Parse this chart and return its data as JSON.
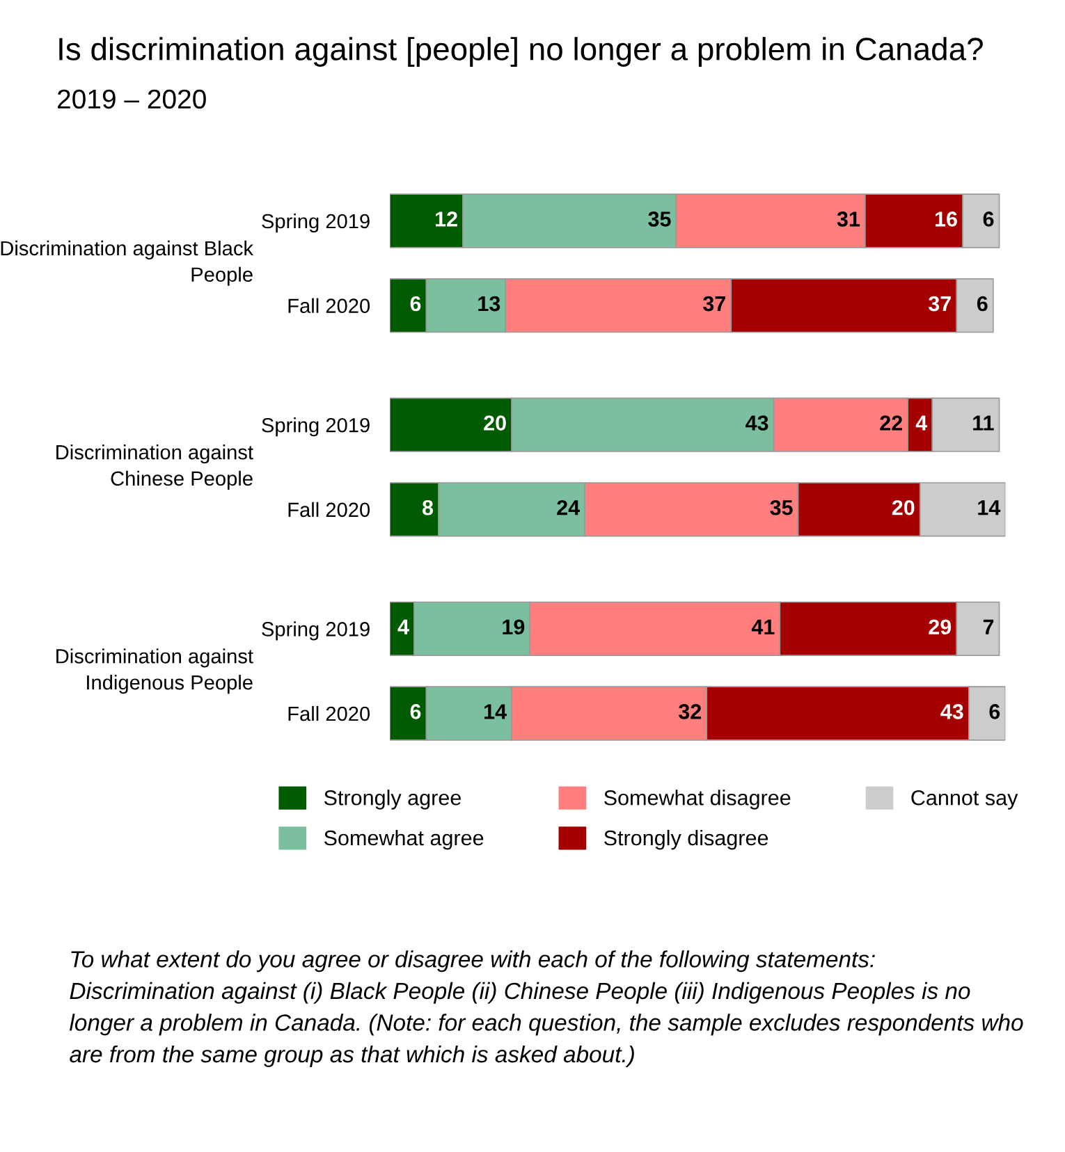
{
  "chart_data": {
    "type": "bar",
    "orientation": "horizontal",
    "stacked": true,
    "data_labels": true,
    "legend": "bottom",
    "title": "Is discrimination against [people] no longer a problem in Canada?",
    "subtitle": "2019 – 2020",
    "categories": [
      "Spring 2019",
      "Fall 2020",
      "Spring 2019",
      "Fall 2020",
      "Spring 2019",
      "Fall 2020"
    ],
    "series": [
      {
        "name": "Strongly agree",
        "color": "#005a00",
        "values": [
          12,
          6,
          20,
          8,
          4,
          6
        ]
      },
      {
        "name": "Somewhat agree",
        "color": "#7bbf9e",
        "values": [
          35,
          13,
          43,
          24,
          19,
          14
        ]
      },
      {
        "name": "Somewhat disagree",
        "color": "#ff7f7f",
        "values": [
          31,
          37,
          22,
          35,
          41,
          32
        ]
      },
      {
        "name": "Strongly disagree",
        "color": "#a50000",
        "values": [
          16,
          37,
          4,
          20,
          29,
          43
        ]
      },
      {
        "name": "Cannot say",
        "color": "#cccccc",
        "values": [
          6,
          6,
          11,
          14,
          7,
          6
        ]
      }
    ],
    "annotations": [
      "Discrimination against Black People",
      "Discrimination against Chinese People",
      "Discrimination against Indigenous People",
      "To what extent do you agree or disagree with each of the following statements: Discrimination against (i) Black People (ii) Chinese People (iii) Indigenous Peoples is no longer a problem in Canada. (Note: for each question, the sample excludes respondents who are from the same group as that which is asked about.)"
    ]
  }
}
